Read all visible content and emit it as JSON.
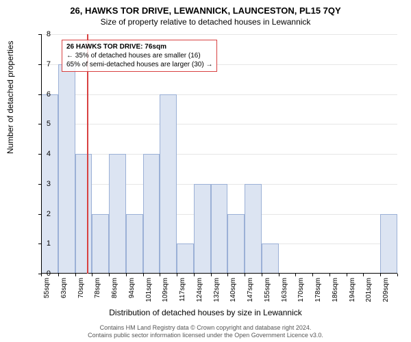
{
  "title": "26, HAWKS TOR DRIVE, LEWANNICK, LAUNCESTON, PL15 7QY",
  "subtitle": "Size of property relative to detached houses in Lewannick",
  "ylabel": "Number of detached properties",
  "xlabel": "Distribution of detached houses by size in Lewannick",
  "chart": {
    "type": "histogram",
    "ylim": [
      0,
      8
    ],
    "ytick_step": 1,
    "categories": [
      "55sqm",
      "63sqm",
      "70sqm",
      "78sqm",
      "86sqm",
      "94sqm",
      "101sqm",
      "109sqm",
      "117sqm",
      "124sqm",
      "132sqm",
      "140sqm",
      "147sqm",
      "155sqm",
      "163sqm",
      "170sqm",
      "178sqm",
      "186sqm",
      "194sqm",
      "201sqm",
      "209sqm"
    ],
    "values": [
      6,
      7,
      4,
      2,
      4,
      2,
      4,
      6,
      1,
      3,
      3,
      2,
      3,
      1,
      0,
      0,
      0,
      0,
      0,
      0,
      2
    ],
    "bar_fill": "#dce4f2",
    "bar_border": "#9bb0d6",
    "grid_color": "#e6e6e6",
    "background": "#ffffff",
    "marker_value": 76,
    "marker_color": "#d84040",
    "xstart": 55,
    "xstep": 7.75
  },
  "annotation": {
    "line1": "26 HAWKS TOR DRIVE: 76sqm",
    "line2": "← 35% of detached houses are smaller (16)",
    "line3": "65% of semi-detached houses are larger (30) →",
    "border_color": "#d84040"
  },
  "attribution": {
    "line1": "Contains HM Land Registry data © Crown copyright and database right 2024.",
    "line2": "Contains public sector information licensed under the Open Government Licence v3.0."
  }
}
